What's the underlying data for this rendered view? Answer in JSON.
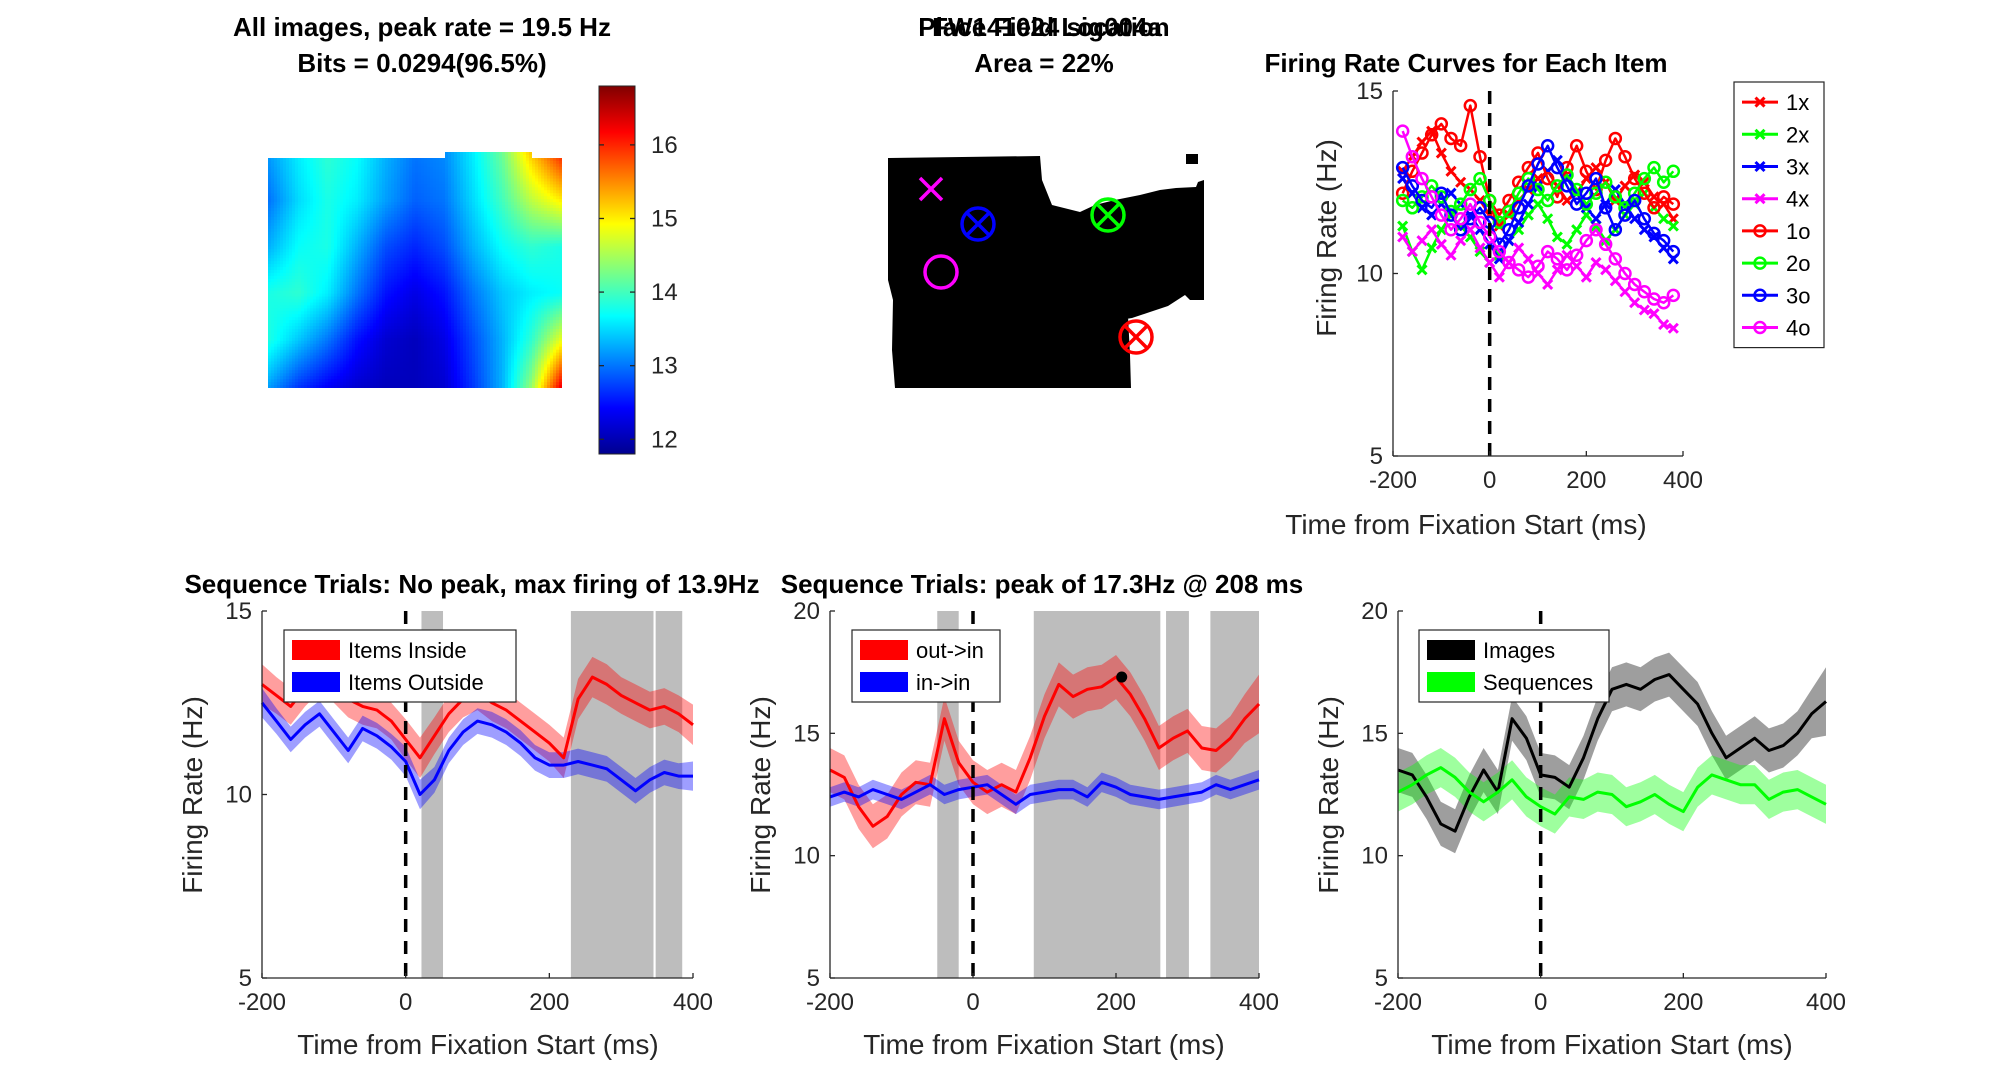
{
  "figure_title": "FW141024 sig004a",
  "chart_data": [
    {
      "id": "heatmap",
      "type": "heatmap",
      "title": "All images, peak rate = 19.5 Hz",
      "subtitle": "Bits = 0.0294(96.5%)",
      "colorbar_ticks": [
        12,
        13,
        14,
        15,
        16
      ],
      "colorbar_range": [
        11.8,
        16.8
      ],
      "colormap": "jet",
      "grid_values": [
        [
          13.2,
          13.6,
          13.9,
          13.7,
          13.3,
          13.0,
          13.1,
          13.6,
          14.2,
          15.2,
          16.0
        ],
        [
          13.0,
          13.5,
          13.8,
          13.6,
          13.2,
          12.9,
          13.0,
          13.5,
          14.0,
          14.6,
          15.0
        ],
        [
          13.3,
          13.7,
          13.8,
          13.3,
          12.8,
          12.6,
          12.8,
          13.3,
          13.7,
          13.9,
          13.8
        ],
        [
          13.8,
          13.9,
          13.6,
          13.0,
          12.5,
          12.3,
          12.5,
          13.0,
          13.4,
          13.6,
          13.7
        ],
        [
          13.8,
          13.4,
          13.0,
          12.5,
          12.2,
          12.1,
          12.3,
          12.8,
          13.3,
          13.9,
          14.8
        ],
        [
          13.2,
          12.7,
          12.4,
          12.2,
          12.1,
          12.1,
          12.2,
          12.7,
          13.3,
          14.4,
          16.2
        ]
      ]
    },
    {
      "id": "placefield",
      "type": "image",
      "title": "Place Field Location",
      "subtitle": "Area = 22%",
      "markers": [
        {
          "shape": "x",
          "color": "#ff00ff",
          "label": "4x"
        },
        {
          "shape": "circle-x",
          "color": "#0000ff",
          "label": "3x"
        },
        {
          "shape": "circle-x",
          "color": "#00ff00",
          "label": "2x"
        },
        {
          "shape": "circle-x",
          "color": "#ff0000",
          "label": "1x"
        },
        {
          "shape": "circle",
          "color": "#ff00ff",
          "label": "4o"
        }
      ]
    },
    {
      "id": "items",
      "type": "line",
      "title": "Firing Rate Curves for Each Item",
      "xlabel": "Time from Fixation Start (ms)",
      "ylabel": "Firing Rate (Hz)",
      "xlim": [
        -200,
        400
      ],
      "ylim": [
        5,
        15
      ],
      "xticks": [
        -200,
        0,
        200,
        400
      ],
      "yticks": [
        5,
        10,
        15
      ],
      "vline": 0,
      "legend_position": "top-right",
      "x": [
        -180,
        -160,
        -140,
        -120,
        -100,
        -80,
        -60,
        -40,
        -20,
        0,
        20,
        40,
        60,
        80,
        100,
        120,
        140,
        160,
        180,
        200,
        220,
        240,
        260,
        280,
        300,
        320,
        340,
        360,
        380
      ],
      "series": [
        {
          "name": "1x",
          "color": "#ff0000",
          "marker": "x",
          "values": [
            12.8,
            13.2,
            13.6,
            13.9,
            13.3,
            12.8,
            12.5,
            12.3,
            12.0,
            11.6,
            11.3,
            11.6,
            12.0,
            12.3,
            12.6,
            12.8,
            12.4,
            12.0,
            12.2,
            12.6,
            12.9,
            12.5,
            12.0,
            12.4,
            12.7,
            12.5,
            12.1,
            11.9,
            11.5
          ]
        },
        {
          "name": "2x",
          "color": "#00ff00",
          "marker": "x",
          "values": [
            11.3,
            10.6,
            10.1,
            10.7,
            11.2,
            11.6,
            11.3,
            11.0,
            10.6,
            10.3,
            10.5,
            10.9,
            11.2,
            11.6,
            11.9,
            11.5,
            11.0,
            10.8,
            11.2,
            11.6,
            11.3,
            10.9,
            11.2,
            11.6,
            11.9,
            12.2,
            11.8,
            11.5,
            11.3
          ]
        },
        {
          "name": "3x",
          "color": "#0000ff",
          "marker": "x",
          "values": [
            12.6,
            12.2,
            11.8,
            11.6,
            11.9,
            12.2,
            11.9,
            11.6,
            11.2,
            10.8,
            10.4,
            10.9,
            11.4,
            11.9,
            12.4,
            12.8,
            13.1,
            12.6,
            12.2,
            11.8,
            11.5,
            11.9,
            12.3,
            11.9,
            11.5,
            11.2,
            11.0,
            10.7,
            10.4
          ]
        },
        {
          "name": "4x",
          "color": "#ff00ff",
          "marker": "x",
          "values": [
            11.0,
            10.6,
            10.9,
            11.2,
            10.8,
            10.5,
            10.9,
            11.2,
            10.7,
            10.3,
            9.9,
            10.3,
            10.7,
            10.4,
            10.0,
            9.7,
            10.1,
            10.5,
            10.2,
            9.9,
            10.3,
            10.1,
            9.8,
            9.5,
            9.2,
            9.0,
            8.9,
            8.6,
            8.5
          ]
        },
        {
          "name": "1o",
          "color": "#ff0000",
          "marker": "o",
          "values": [
            12.2,
            12.8,
            13.3,
            13.8,
            14.1,
            13.7,
            13.5,
            14.6,
            13.2,
            12.0,
            11.6,
            12.0,
            12.5,
            12.9,
            13.3,
            12.6,
            12.1,
            12.9,
            13.5,
            12.8,
            12.3,
            13.1,
            13.7,
            13.2,
            12.6,
            12.2,
            11.8,
            12.1,
            11.9
          ]
        },
        {
          "name": "2o",
          "color": "#00ff00",
          "marker": "o",
          "values": [
            12.0,
            11.8,
            12.1,
            12.4,
            12.1,
            11.7,
            11.9,
            12.3,
            12.6,
            12.0,
            11.4,
            11.7,
            12.2,
            12.6,
            12.3,
            12.0,
            12.4,
            12.7,
            12.3,
            11.9,
            12.2,
            12.5,
            12.1,
            11.8,
            12.2,
            12.6,
            12.9,
            12.5,
            12.8
          ]
        },
        {
          "name": "3o",
          "color": "#0000ff",
          "marker": "o",
          "values": [
            12.9,
            12.4,
            12.0,
            11.8,
            12.2,
            11.6,
            11.2,
            11.5,
            11.8,
            11.4,
            10.8,
            11.2,
            11.8,
            12.4,
            13.0,
            13.5,
            12.9,
            12.4,
            11.9,
            12.2,
            12.6,
            11.8,
            11.2,
            11.6,
            12.0,
            11.5,
            11.1,
            10.9,
            10.6
          ]
        },
        {
          "name": "4o",
          "color": "#ff00ff",
          "marker": "o",
          "values": [
            13.9,
            13.2,
            12.6,
            12.1,
            11.6,
            11.2,
            11.5,
            11.9,
            11.4,
            11.0,
            10.6,
            10.3,
            10.1,
            9.9,
            10.2,
            10.6,
            10.4,
            10.1,
            10.5,
            10.9,
            11.2,
            10.8,
            10.4,
            10.0,
            9.7,
            9.5,
            9.3,
            9.2,
            9.4
          ]
        }
      ]
    },
    {
      "id": "seq_inside",
      "type": "line",
      "title": "Sequence Trials: No peak, max firing of 13.9Hz",
      "xlabel": "Time from Fixation Start (ms)",
      "ylabel": "Firing Rate (Hz)",
      "xlim": [
        -200,
        400
      ],
      "ylim": [
        5,
        15
      ],
      "xticks": [
        -200,
        0,
        200,
        400
      ],
      "yticks": [
        5,
        10,
        15
      ],
      "vline": 0,
      "legend_position": "top-left",
      "shaded_intervals": [
        [
          22,
          52
        ],
        [
          230,
          345
        ],
        [
          348,
          385
        ]
      ],
      "x": [
        -200,
        -180,
        -160,
        -140,
        -120,
        -100,
        -80,
        -60,
        -40,
        -20,
        0,
        20,
        40,
        60,
        80,
        100,
        120,
        140,
        160,
        180,
        200,
        220,
        240,
        260,
        280,
        300,
        320,
        340,
        360,
        380,
        400
      ],
      "series": [
        {
          "name": "Items Inside",
          "color": "#ff0000",
          "values": [
            13.0,
            12.7,
            12.4,
            12.9,
            13.3,
            13.0,
            12.6,
            12.4,
            12.3,
            12.0,
            11.5,
            11.0,
            11.6,
            12.2,
            12.6,
            12.8,
            12.5,
            12.3,
            12.0,
            11.7,
            11.4,
            11.0,
            12.6,
            13.2,
            13.0,
            12.7,
            12.5,
            12.3,
            12.4,
            12.2,
            11.9
          ]
        },
        {
          "name": "Items Outside",
          "color": "#0000ff",
          "values": [
            12.5,
            12.0,
            11.5,
            11.9,
            12.2,
            11.7,
            11.2,
            11.8,
            11.6,
            11.3,
            10.9,
            10.0,
            10.4,
            11.2,
            11.7,
            12.0,
            11.9,
            11.7,
            11.4,
            11.0,
            10.8,
            10.8,
            10.9,
            10.8,
            10.7,
            10.4,
            10.1,
            10.4,
            10.6,
            10.5,
            10.5
          ]
        }
      ],
      "bands": [
        {
          "name": "Items Inside",
          "width": [
            0.55,
            0.5,
            0.5,
            0.5,
            0.5,
            0.5,
            0.5,
            0.5,
            0.5,
            0.5,
            0.55,
            0.55,
            0.5,
            0.5,
            0.5,
            0.5,
            0.5,
            0.5,
            0.5,
            0.5,
            0.5,
            0.55,
            0.55,
            0.55,
            0.55,
            0.5,
            0.5,
            0.5,
            0.5,
            0.5,
            0.55
          ]
        },
        {
          "name": "Items Outside",
          "width": [
            0.4,
            0.35,
            0.35,
            0.35,
            0.35,
            0.35,
            0.35,
            0.35,
            0.35,
            0.35,
            0.4,
            0.4,
            0.35,
            0.35,
            0.35,
            0.35,
            0.35,
            0.35,
            0.35,
            0.35,
            0.35,
            0.35,
            0.35,
            0.35,
            0.35,
            0.35,
            0.35,
            0.35,
            0.35,
            0.35,
            0.4
          ]
        }
      ]
    },
    {
      "id": "seq_outin",
      "type": "line",
      "title": "Sequence Trials: peak of 17.3Hz @ 208 ms",
      "xlabel": "Time from Fixation Start (ms)",
      "ylabel": "Firing Rate (Hz)",
      "xlim": [
        -200,
        400
      ],
      "ylim": [
        5,
        20
      ],
      "xticks": [
        -200,
        0,
        200,
        400
      ],
      "yticks": [
        5,
        10,
        15,
        20
      ],
      "vline": 0,
      "legend_position": "top-left",
      "shaded_intervals": [
        [
          -50,
          -20
        ],
        [
          85,
          262
        ],
        [
          270,
          302
        ],
        [
          332,
          400
        ]
      ],
      "peak_point": {
        "x": 208,
        "y": 17.3
      },
      "x": [
        -200,
        -180,
        -160,
        -140,
        -120,
        -100,
        -80,
        -60,
        -40,
        -20,
        0,
        20,
        40,
        60,
        80,
        100,
        120,
        140,
        160,
        180,
        200,
        220,
        240,
        260,
        280,
        300,
        320,
        340,
        360,
        380,
        400
      ],
      "series": [
        {
          "name": "out->in",
          "color": "#ff0000",
          "values": [
            13.5,
            13.2,
            12.0,
            11.2,
            11.6,
            12.5,
            13.0,
            12.9,
            15.6,
            13.8,
            13.0,
            12.6,
            12.9,
            12.6,
            14.0,
            15.7,
            17.0,
            16.5,
            16.8,
            16.9,
            17.3,
            16.6,
            15.6,
            14.4,
            14.8,
            15.1,
            14.4,
            14.3,
            14.8,
            15.6,
            16.2
          ]
        },
        {
          "name": "in->in",
          "color": "#0000ff",
          "values": [
            12.4,
            12.6,
            12.4,
            12.7,
            12.5,
            12.3,
            12.6,
            12.9,
            12.5,
            12.7,
            12.8,
            12.9,
            12.5,
            12.1,
            12.5,
            12.6,
            12.7,
            12.7,
            12.4,
            13.0,
            12.8,
            12.5,
            12.4,
            12.3,
            12.4,
            12.5,
            12.6,
            12.9,
            12.7,
            12.9,
            13.1
          ]
        }
      ],
      "bands": [
        {
          "name": "out->in",
          "width": [
            0.9,
            0.9,
            0.9,
            0.9,
            0.9,
            0.9,
            0.9,
            0.9,
            0.9,
            0.9,
            0.9,
            0.9,
            0.9,
            0.9,
            0.9,
            0.9,
            0.9,
            0.9,
            0.9,
            0.9,
            0.9,
            0.9,
            0.9,
            0.9,
            0.9,
            0.9,
            0.9,
            0.9,
            0.9,
            1.0,
            1.2
          ]
        },
        {
          "name": "in->in",
          "width": [
            0.4,
            0.4,
            0.4,
            0.4,
            0.4,
            0.4,
            0.4,
            0.4,
            0.4,
            0.4,
            0.4,
            0.4,
            0.4,
            0.4,
            0.4,
            0.4,
            0.4,
            0.4,
            0.4,
            0.4,
            0.4,
            0.4,
            0.4,
            0.4,
            0.4,
            0.4,
            0.4,
            0.4,
            0.4,
            0.4,
            0.4
          ]
        }
      ]
    },
    {
      "id": "img_vs_seq",
      "type": "line",
      "title": "",
      "xlabel": "Time from Fixation Start (ms)",
      "ylabel": "Firing Rate (Hz)",
      "xlim": [
        -200,
        400
      ],
      "ylim": [
        5,
        20
      ],
      "xticks": [
        -200,
        0,
        200,
        400
      ],
      "yticks": [
        5,
        10,
        15,
        20
      ],
      "vline": 0,
      "legend_position": "top-left",
      "x": [
        -200,
        -180,
        -160,
        -140,
        -120,
        -100,
        -80,
        -60,
        -40,
        -20,
        0,
        20,
        40,
        60,
        80,
        100,
        120,
        140,
        160,
        180,
        200,
        220,
        240,
        260,
        280,
        300,
        320,
        340,
        360,
        380,
        400
      ],
      "series": [
        {
          "name": "Images",
          "color": "#000000",
          "values": [
            13.5,
            13.3,
            12.4,
            11.3,
            11.0,
            12.4,
            13.5,
            12.6,
            15.6,
            14.8,
            13.3,
            13.2,
            12.8,
            14.0,
            15.6,
            16.8,
            17.0,
            16.8,
            17.2,
            17.4,
            16.8,
            16.2,
            15.0,
            14.0,
            14.4,
            14.8,
            14.3,
            14.5,
            15.0,
            15.8,
            16.3
          ]
        },
        {
          "name": "Sequences",
          "color": "#00ff00",
          "values": [
            12.6,
            12.9,
            13.3,
            13.6,
            13.2,
            12.6,
            12.2,
            12.6,
            13.1,
            12.4,
            12.0,
            11.7,
            12.4,
            12.3,
            12.6,
            12.5,
            12.0,
            12.2,
            12.5,
            12.1,
            11.8,
            12.8,
            13.3,
            13.1,
            12.9,
            12.9,
            12.3,
            12.6,
            12.7,
            12.4,
            12.1
          ]
        }
      ],
      "bands": [
        {
          "name": "Images",
          "width": [
            0.9,
            0.9,
            0.9,
            0.9,
            0.9,
            0.9,
            0.9,
            0.9,
            0.9,
            0.9,
            0.9,
            0.9,
            0.9,
            0.9,
            0.9,
            0.9,
            0.9,
            0.9,
            0.9,
            0.9,
            0.9,
            0.9,
            0.9,
            0.9,
            0.9,
            0.9,
            0.9,
            0.9,
            0.9,
            1.0,
            1.4
          ]
        },
        {
          "name": "Sequences",
          "width": [
            0.8,
            0.8,
            0.8,
            0.8,
            0.8,
            0.8,
            0.8,
            0.8,
            0.8,
            0.8,
            0.8,
            0.8,
            0.8,
            0.8,
            0.8,
            0.8,
            0.8,
            0.8,
            0.8,
            0.8,
            0.8,
            0.8,
            0.8,
            0.8,
            0.8,
            0.8,
            0.8,
            0.8,
            0.8,
            0.8,
            0.8
          ]
        }
      ]
    }
  ]
}
